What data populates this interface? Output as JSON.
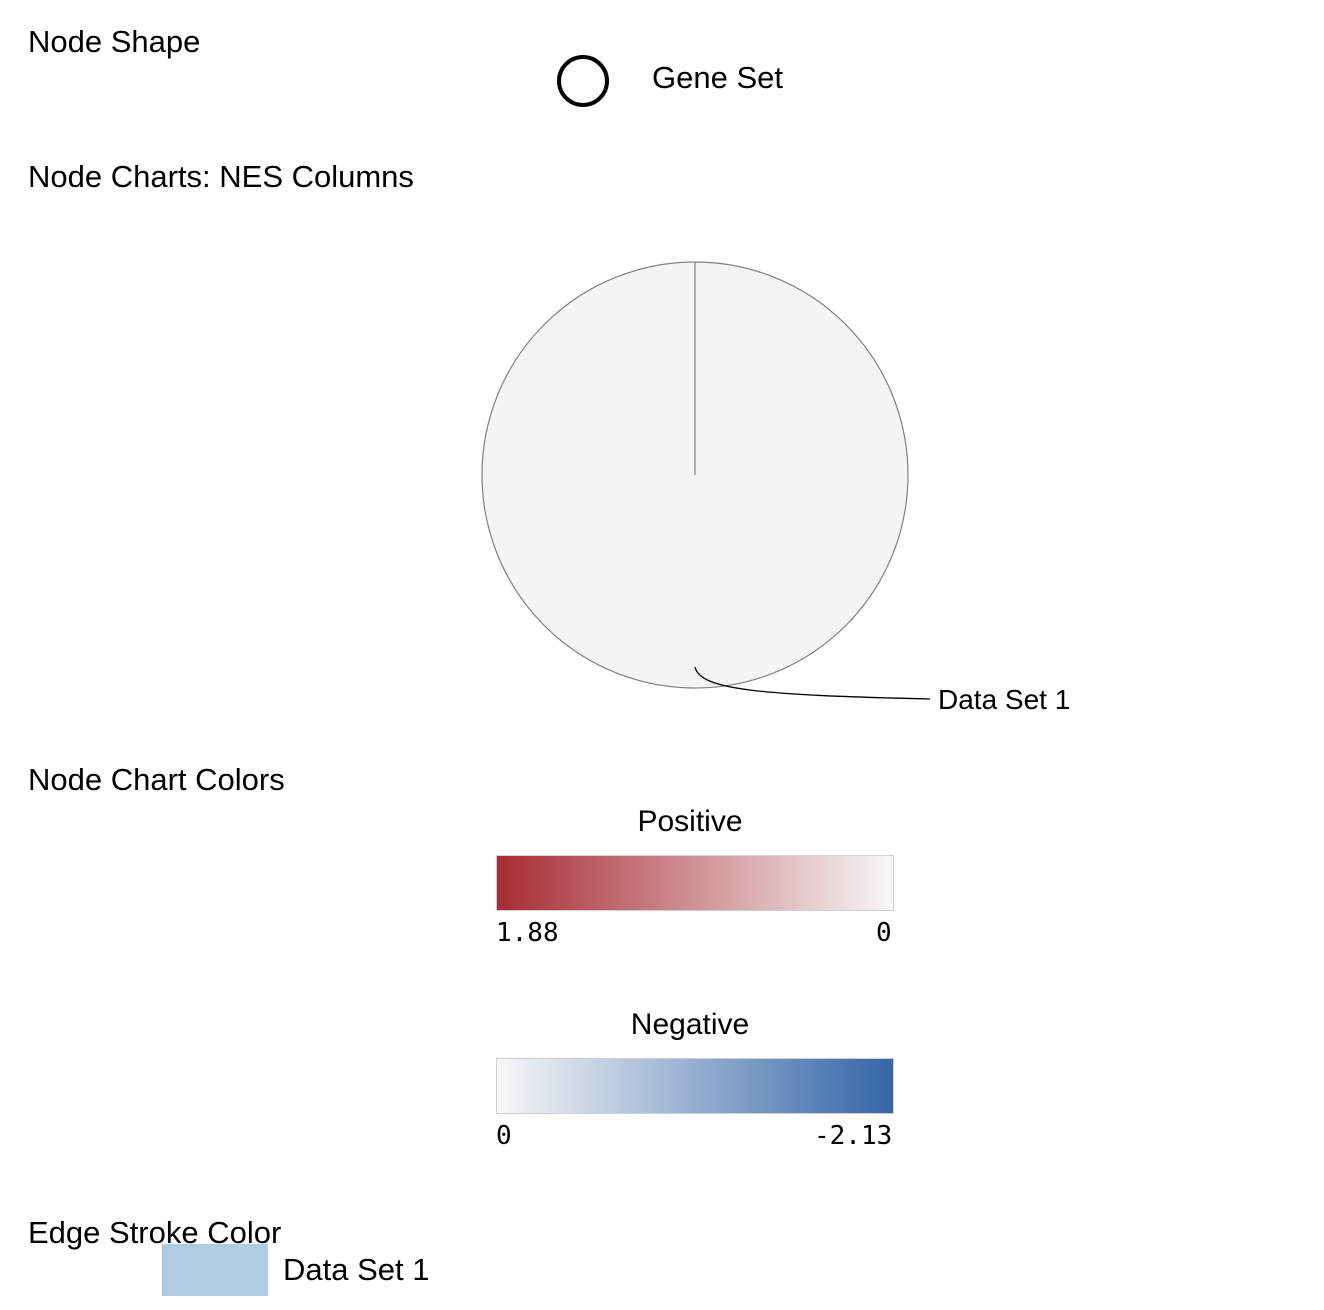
{
  "sections": {
    "node_shape": "Node Shape",
    "node_charts": "Node Charts: NES Columns",
    "node_chart_colors": "Node Chart Colors",
    "edge_stroke_color": "Edge Stroke Color"
  },
  "node_shape": {
    "label": "Gene Set",
    "shape": "circle",
    "stroke": "#000000"
  },
  "pie": {
    "slices": [
      {
        "name": "Data Set 1",
        "value": 1
      }
    ],
    "fill": "#f4f4f4",
    "stroke": "#808080",
    "label": "Data Set 1"
  },
  "colors": {
    "positive": {
      "title": "Positive",
      "min_label": "1.88",
      "max_label": "0",
      "from": "#a72c35",
      "to": "#f7f7f7"
    },
    "negative": {
      "title": "Negative",
      "min_label": "0",
      "max_label": "-2.13",
      "from": "#f7f7f7",
      "to": "#3466a8"
    }
  },
  "edge": {
    "label": "Data Set 1",
    "color": "#afcde1"
  }
}
